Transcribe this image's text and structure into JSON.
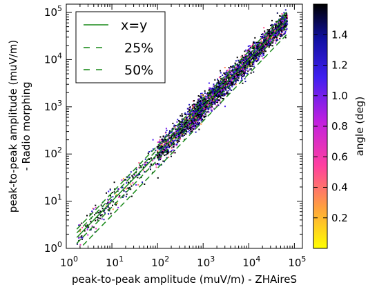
{
  "chart_data": {
    "type": "scatter",
    "xlabel": "peak-to-peak amplitude (muV/m) - ZHAireS",
    "ylabel_lines": [
      "peak-to-peak amplitude (muV/m)",
      "- Radio morphing"
    ],
    "x_scale": "log",
    "y_scale": "log",
    "xlim": [
      1,
      150000
    ],
    "ylim": [
      1,
      150000
    ],
    "x_ticks": [
      {
        "value": 1,
        "base": "10",
        "exp": "0"
      },
      {
        "value": 10,
        "base": "10",
        "exp": "1"
      },
      {
        "value": 100,
        "base": "10",
        "exp": "2"
      },
      {
        "value": 1000,
        "base": "10",
        "exp": "3"
      },
      {
        "value": 10000,
        "base": "10",
        "exp": "4"
      },
      {
        "value": 100000,
        "base": "10",
        "exp": "5"
      }
    ],
    "y_ticks": [
      {
        "value": 1,
        "base": "10",
        "exp": "0"
      },
      {
        "value": 10,
        "base": "10",
        "exp": "1"
      },
      {
        "value": 100,
        "base": "10",
        "exp": "2"
      },
      {
        "value": 1000,
        "base": "10",
        "exp": "3"
      },
      {
        "value": 10000,
        "base": "10",
        "exp": "4"
      },
      {
        "value": 100000,
        "base": "10",
        "exp": "5"
      }
    ],
    "grid": false,
    "legend": {
      "placement": "top-left",
      "entries": [
        {
          "label": "x=y",
          "style": "solid",
          "color": "#1a8a1a"
        },
        {
          "label": "25%",
          "style": "dashed",
          "color": "#1a8a1a"
        },
        {
          "label": "50%",
          "style": "dashed",
          "color": "#1a8a1a"
        }
      ]
    },
    "reference_lines": [
      {
        "label": "x=y",
        "factor": 1.0,
        "style": "solid"
      },
      {
        "label": "25%",
        "factor": 1.25,
        "style": "dashed"
      },
      {
        "label": "25%",
        "factor": 0.75,
        "style": "dashed"
      },
      {
        "label": "50%",
        "factor": 1.5,
        "style": "dashed"
      },
      {
        "label": "50%",
        "factor": 0.5,
        "style": "dashed"
      }
    ],
    "colorbar": {
      "label": "angle (deg)",
      "range": [
        0.0,
        1.6
      ],
      "ticks": [
        "0.2",
        "0.4",
        "0.6",
        "0.8",
        "1.0",
        "1.2",
        "1.4"
      ],
      "tick_values": [
        0.2,
        0.4,
        0.6,
        0.8,
        1.0,
        1.2,
        1.4
      ],
      "colormap": [
        "#ffff00",
        "#ff9f40",
        "#ff3fa0",
        "#c020e0",
        "#4020f0",
        "#1010a0",
        "#000000"
      ]
    },
    "scatter": {
      "description": "dense cloud of points around x=y, from about 2 to 70000 on x",
      "x_range": [
        1.7,
        70000
      ],
      "relative_spread": 0.45
    }
  }
}
